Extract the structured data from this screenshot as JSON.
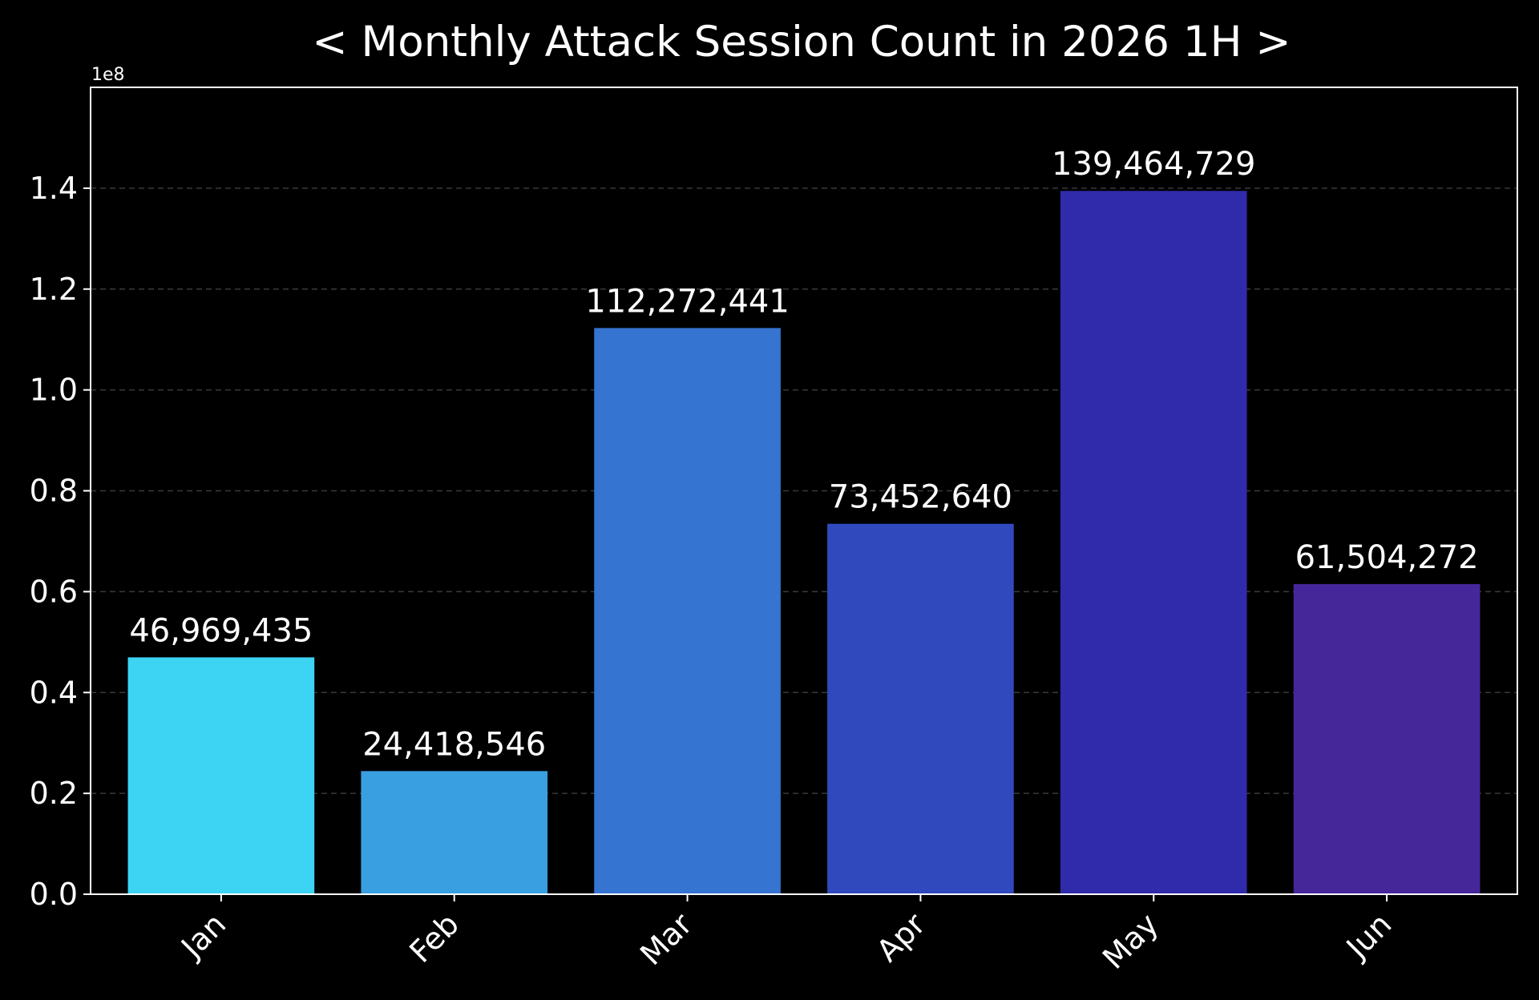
{
  "chart_data": {
    "type": "bar",
    "title": "< Monthly Attack Session Count in 2026 1H >",
    "xlabel": "",
    "ylabel": "",
    "y_offset_label": "1e8",
    "y_scale": 100000000,
    "ylim": [
      0,
      160000000
    ],
    "y_ticks": [
      0,
      20000000,
      40000000,
      60000000,
      80000000,
      100000000,
      120000000,
      140000000
    ],
    "y_tick_labels": [
      "0.0",
      "0.2",
      "0.4",
      "0.6",
      "0.8",
      "1.0",
      "1.2",
      "1.4"
    ],
    "grid": true,
    "categories": [
      "Jan",
      "Feb",
      "Mar",
      "Apr",
      "May",
      "Jun"
    ],
    "values": [
      46969435,
      24418546,
      112272441,
      73452640,
      139464729,
      61504272
    ],
    "value_labels": [
      "46,969,435",
      "24,418,546",
      "112,272,441",
      "73,452,640",
      "139,464,729",
      "61,504,272"
    ],
    "bar_colors": [
      "#3dd3f3",
      "#399fe1",
      "#3574d0",
      "#3049bd",
      "#302baa",
      "#45279a"
    ],
    "background_color": "#000000",
    "text_color": "#ffffff"
  }
}
